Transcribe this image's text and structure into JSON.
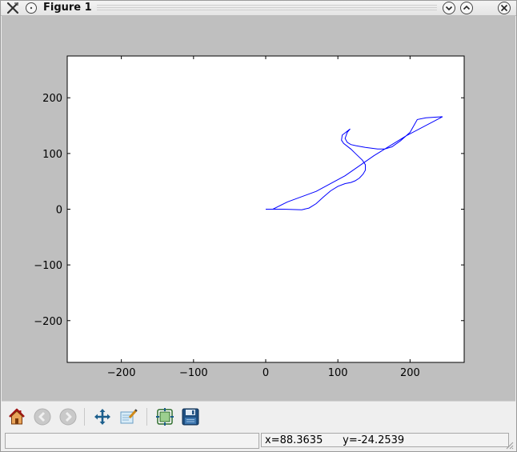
{
  "window": {
    "title": "Figure 1"
  },
  "toolbar": {
    "buttons": [
      {
        "name": "home-icon"
      },
      {
        "name": "back-icon"
      },
      {
        "name": "forward-icon"
      },
      {
        "name": "pan-icon"
      },
      {
        "name": "zoom-icon"
      },
      {
        "name": "configure-subplots-icon"
      },
      {
        "name": "save-icon"
      }
    ]
  },
  "status": {
    "left_text": "",
    "coords": "x=88.3635      y=-24.2539"
  },
  "chart_data": {
    "type": "line",
    "title": "",
    "xlabel": "",
    "ylabel": "",
    "xlim": [
      -275,
      275
    ],
    "ylim": [
      -275,
      275
    ],
    "xticks": [
      -200,
      -100,
      0,
      100,
      200
    ],
    "yticks": [
      200,
      100,
      0,
      -100,
      -200
    ],
    "xtick_labels": [
      "−200",
      "−100",
      "0",
      "100",
      "200"
    ],
    "ytick_labels": [
      "200",
      "100",
      "0",
      "−100",
      "−200"
    ],
    "grid": false,
    "series": [
      {
        "color": "#0000ff",
        "x": [
          0,
          25,
          50,
          60,
          70,
          80,
          90,
          100,
          110,
          118,
          124,
          130,
          135,
          138,
          138,
          134,
          126,
          118,
          108,
          105,
          106,
          110,
          117,
          113,
          110,
          113,
          118,
          125,
          138,
          155,
          165,
          175,
          187,
          200,
          210,
          222,
          245,
          245,
          195,
          150,
          110,
          70,
          30,
          10,
          0
        ],
        "y": [
          0,
          0,
          -1,
          2,
          10,
          22,
          33,
          41,
          46,
          48,
          51,
          56,
          63,
          70,
          80,
          88,
          98,
          108,
          118,
          124,
          133,
          137,
          144,
          138,
          127,
          120,
          116,
          114,
          111,
          108,
          108,
          112,
          123,
          138,
          161,
          164,
          166,
          166,
          132,
          96,
          60,
          32,
          13,
          0,
          0
        ]
      }
    ]
  }
}
